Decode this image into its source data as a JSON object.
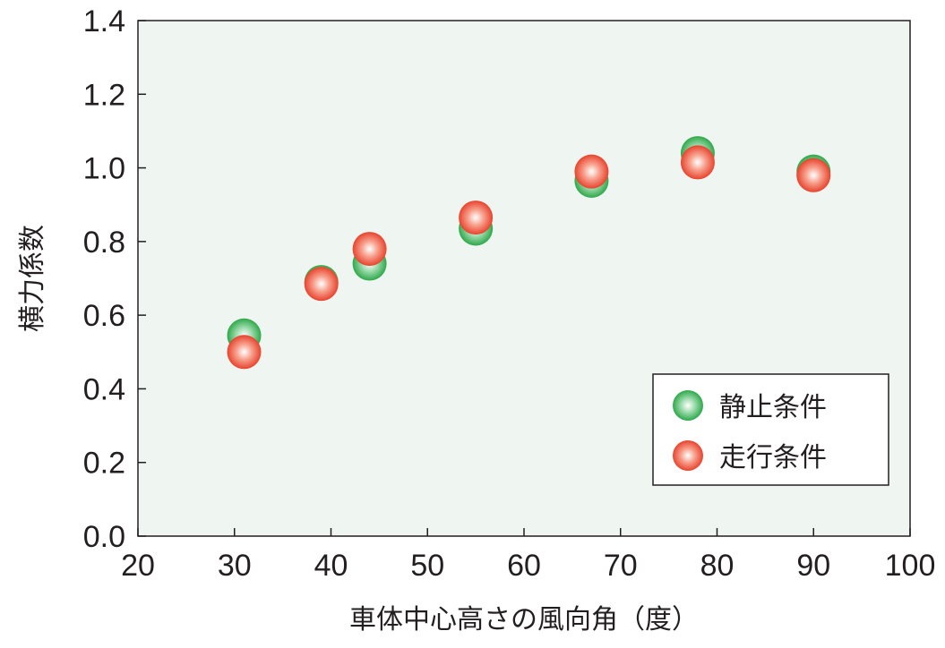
{
  "chart_data": {
    "type": "scatter",
    "xlabel": "車体中心高さの風向角（度）",
    "ylabel": "横力係数",
    "xlim": [
      20,
      100
    ],
    "ylim": [
      0.0,
      1.4
    ],
    "x_ticks": [
      "20",
      "30",
      "40",
      "50",
      "60",
      "70",
      "80",
      "90",
      "100"
    ],
    "y_ticks": [
      "0.0",
      "0.2",
      "0.4",
      "0.6",
      "0.8",
      "1.0",
      "1.2",
      "1.4"
    ],
    "legend_position": "bottom-right",
    "grid": false,
    "series": [
      {
        "name": "静止条件",
        "color": "#2ea84a",
        "x": [
          31,
          39,
          44,
          55,
          67,
          78,
          90
        ],
        "y": [
          0.545,
          0.69,
          0.74,
          0.835,
          0.965,
          1.04,
          0.99
        ]
      },
      {
        "name": "走行条件",
        "color": "#e8432d",
        "x": [
          31,
          39,
          44,
          55,
          67,
          78,
          90
        ],
        "y": [
          0.5,
          0.685,
          0.78,
          0.865,
          0.99,
          1.015,
          0.98
        ]
      }
    ],
    "colors": {
      "plot_background": "#eff6f1",
      "axis": "#231f20"
    }
  }
}
